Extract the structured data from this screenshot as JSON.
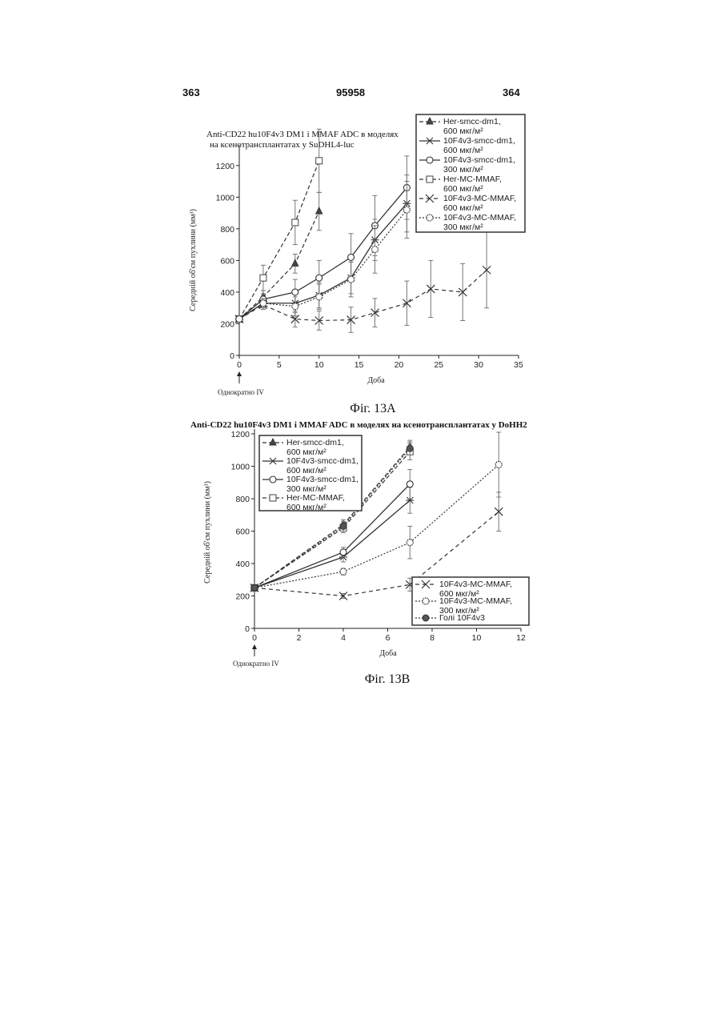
{
  "page": {
    "page_left": "363",
    "patent_number": "95958",
    "page_right": "364"
  },
  "figA": {
    "caption": "Фіг. 13А",
    "title_line1": "Anti-CD22 hu10F4v3 DM1 і MMAF ADC в моделях",
    "title_line2": "на ксенотрансплантатах у     SuDHL4-luc",
    "xlabel": "Доба",
    "ylabel": "Середній об'єм пухлини (мм³)",
    "dose_note": "Однократно IV",
    "legend": [
      {
        "label": "Her-smcc-dm1,",
        "dose": "600 мкг/м²"
      },
      {
        "label": "10F4v3-smcc-dm1,",
        "dose": "600 мкг/м²"
      },
      {
        "label": "10F4v3-smcc-dm1,",
        "dose": "300 мкг/м²"
      },
      {
        "label": "Her-MC-MMAF,",
        "dose": "600 мкг/м²"
      },
      {
        "label": "10F4v3-MC-MMAF,",
        "dose": "600 мкг/м²"
      },
      {
        "label": "10F4v3-MC-MMAF,",
        "dose": "300 мкг/м²"
      }
    ]
  },
  "figB": {
    "caption": "Фіг. 13В",
    "title": "Anti-CD22 hu10F4v3 DM1 і MMAF ADC в моделях на ксенотрансплантатах у DoHH2",
    "xlabel": "Доба",
    "ylabel": "Середній об'єм пухлини (мм³)",
    "dose_note": "Однократно IV",
    "legend_top": [
      {
        "label": "Her-smcc-dm1,",
        "dose": "600 мкг/м²"
      },
      {
        "label": "10F4v3-smcc-dm1,",
        "dose": "600 мкг/м²"
      },
      {
        "label": "10F4v3-smcc-dm1,",
        "dose": "300 мкг/м²"
      },
      {
        "label": "Her-MC-MMAF,",
        "dose": "600 мкг/м²"
      }
    ],
    "legend_bottom": [
      {
        "label": "10F4v3-MC-MMAF,",
        "dose": "600 мкг/м²"
      },
      {
        "label": "10F4v3-MC-MMAF,",
        "dose": "300 мкг/м²"
      },
      {
        "label": "Голі   10F4v3",
        "dose": ""
      }
    ]
  },
  "chart_data": [
    {
      "type": "line",
      "xlim": [
        0,
        35
      ],
      "ylim": [
        0,
        1300
      ],
      "xticks": [
        0,
        5,
        10,
        15,
        20,
        25,
        30,
        35
      ],
      "yticks": [
        0,
        200,
        400,
        600,
        800,
        1000,
        1200
      ],
      "series": [
        {
          "name": "Her-smcc-dm1, 600 мкг/м²",
          "marker": "triangle",
          "dash": "5,3",
          "x": [
            0,
            3,
            7,
            10
          ],
          "y": [
            230,
            370,
            580,
            910
          ],
          "err": [
            15,
            40,
            60,
            120
          ]
        },
        {
          "name": "10F4v3-smcc-dm1, 600 мкг/м²",
          "marker": "star",
          "dash": "",
          "x": [
            0,
            3,
            7,
            10,
            14,
            17,
            21
          ],
          "y": [
            230,
            330,
            330,
            380,
            490,
            730,
            960
          ],
          "err": [
            15,
            30,
            60,
            80,
            100,
            130,
            180
          ]
        },
        {
          "name": "10F4v3-smcc-dm1, 300 мкг/м²",
          "marker": "circle",
          "dash": "",
          "x": [
            0,
            3,
            7,
            10,
            14,
            17,
            21
          ],
          "y": [
            230,
            355,
            400,
            490,
            620,
            820,
            1060
          ],
          "err": [
            15,
            35,
            80,
            110,
            150,
            190,
            200
          ]
        },
        {
          "name": "Her-MC-MMAF, 600 мкг/м²",
          "marker": "square",
          "dash": "5,3",
          "x": [
            0,
            3,
            7,
            10
          ],
          "y": [
            230,
            490,
            840,
            1230
          ],
          "err": [
            15,
            80,
            140,
            200
          ]
        },
        {
          "name": "10F4v3-MC-MMAF, 600 мкг/м²",
          "marker": "x",
          "dash": "5,4",
          "x": [
            0,
            3,
            7,
            10,
            14,
            17,
            21,
            24,
            28,
            31
          ],
          "y": [
            230,
            320,
            230,
            220,
            225,
            270,
            330,
            420,
            400,
            540
          ],
          "err": [
            15,
            30,
            50,
            60,
            80,
            90,
            140,
            180,
            180,
            240
          ]
        },
        {
          "name": "10F4v3-MC-MMAF, 300 мкг/м²",
          "marker": "dotcircle",
          "dash": "2,2",
          "x": [
            0,
            3,
            7,
            10,
            14,
            17,
            21
          ],
          "y": [
            230,
            330,
            310,
            370,
            480,
            670,
            920
          ],
          "err": [
            15,
            30,
            60,
            80,
            110,
            150,
            180
          ]
        }
      ]
    },
    {
      "type": "line",
      "xlim": [
        0,
        12
      ],
      "ylim": [
        0,
        1200
      ],
      "xticks": [
        0,
        2,
        4,
        6,
        8,
        10,
        12
      ],
      "yticks": [
        0,
        200,
        400,
        600,
        800,
        1000,
        1200
      ],
      "series": [
        {
          "name": "Her-smcc-dm1, 600 мкг/м²",
          "marker": "triangle",
          "dash": "5,3",
          "x": [
            0,
            4,
            7
          ],
          "y": [
            250,
            640,
            1120
          ],
          "err": [
            10,
            30,
            40
          ]
        },
        {
          "name": "10F4v3-smcc-dm1, 600 мкг/м²",
          "marker": "star",
          "dash": "",
          "x": [
            0,
            4,
            7
          ],
          "y": [
            250,
            440,
            790
          ],
          "err": [
            10,
            30,
            80
          ]
        },
        {
          "name": "10F4v3-smcc-dm1, 300 мкг/м²",
          "marker": "circle",
          "dash": "",
          "x": [
            0,
            4,
            7
          ],
          "y": [
            250,
            470,
            890
          ],
          "err": [
            10,
            30,
            90
          ]
        },
        {
          "name": "Her-MC-MMAF, 600 мкг/м²",
          "marker": "square",
          "dash": "5,3",
          "x": [
            0,
            4,
            7
          ],
          "y": [
            250,
            620,
            1090
          ],
          "err": [
            10,
            30,
            50
          ]
        },
        {
          "name": "10F4v3-MC-MMAF, 600 мкг/м²",
          "marker": "x",
          "dash": "5,4",
          "x": [
            0,
            4,
            7,
            11
          ],
          "y": [
            250,
            200,
            270,
            720
          ],
          "err": [
            10,
            15,
            40,
            120
          ]
        },
        {
          "name": "10F4v3-MC-MMAF, 300 мкг/м²",
          "marker": "dotcircle",
          "dash": "2,2",
          "x": [
            0,
            4,
            7,
            11
          ],
          "y": [
            250,
            350,
            530,
            1010
          ],
          "err": [
            10,
            20,
            100,
            200
          ]
        },
        {
          "name": "Голі 10F4v3",
          "marker": "filled",
          "dash": "2,2",
          "x": [
            0,
            4,
            7
          ],
          "y": [
            250,
            630,
            1110
          ],
          "err": [
            10,
            30,
            40
          ]
        }
      ]
    }
  ]
}
